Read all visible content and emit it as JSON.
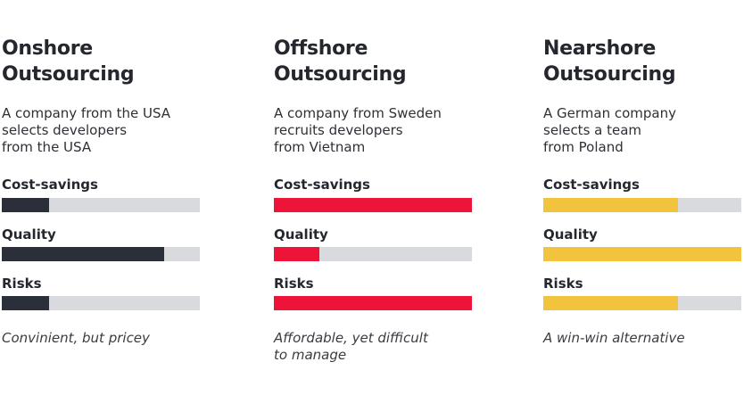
{
  "columns": [
    {
      "title": "Onshore\nOutsourcing",
      "description": "A company from the USA\nselects developers\nfrom the USA",
      "color": "#2b2f3a",
      "metrics": [
        {
          "label": "Cost-savings",
          "level": 0.24
        },
        {
          "label": "Quality",
          "level": 0.82
        },
        {
          "label": "Risks",
          "level": 0.24
        }
      ],
      "note": "Convinient, but pricey"
    },
    {
      "title": "Offshore\nOutsourcing",
      "description": "A company from Sweden\nrecruits developers\nfrom Vietnam",
      "color": "#ee1439",
      "metrics": [
        {
          "label": "Cost-savings",
          "level": 1.0
        },
        {
          "label": "Quality",
          "level": 0.23
        },
        {
          "label": "Risks",
          "level": 1.0
        }
      ],
      "note": "Affordable, yet difficult\nto manage"
    },
    {
      "title": "Nearshore\nOutsourcing",
      "description": "A German company\nselects a team\nfrom Poland",
      "color": "#f2c33d",
      "metrics": [
        {
          "label": "Cost-savings",
          "level": 0.68
        },
        {
          "label": "Quality",
          "level": 1.0
        },
        {
          "label": "Risks",
          "level": 0.68
        }
      ],
      "note": "A win-win alternative"
    }
  ]
}
